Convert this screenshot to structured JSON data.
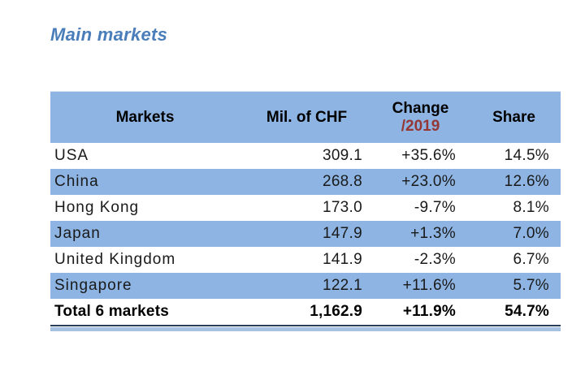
{
  "page": {
    "title": "Main markets"
  },
  "table": {
    "columns": [
      {
        "label": "Markets"
      },
      {
        "label": "Mil. of CHF"
      },
      {
        "label": "Change",
        "sublabel": "/2019"
      },
      {
        "label": "Share"
      }
    ],
    "rows": [
      [
        "USA",
        "309.1",
        "+35.6%",
        "14.5%"
      ],
      [
        "China",
        "268.8",
        "+23.0%",
        "12.6%"
      ],
      [
        "Hong Kong",
        "173.0",
        "-9.7%",
        "8.1%"
      ],
      [
        "Japan",
        "147.9",
        "+1.3%",
        "7.0%"
      ],
      [
        "United Kingdom",
        "141.9",
        "-2.3%",
        "6.7%"
      ],
      [
        "Singapore",
        "122.1",
        "+11.6%",
        "5.7%"
      ]
    ],
    "total": [
      "Total 6 markets",
      "1,162.9",
      "+11.9%",
      "54.7%"
    ],
    "colors": {
      "title_blue": "#4a7ebb",
      "header_bg": "#8db4e2",
      "band_bg": "#8db4e2",
      "change_year_red": "#953735",
      "text_dark": "#1a1a1a",
      "bottom_border_dark": "#2a3f5a",
      "bottom_strip_blue": "#a6c1e2"
    }
  }
}
